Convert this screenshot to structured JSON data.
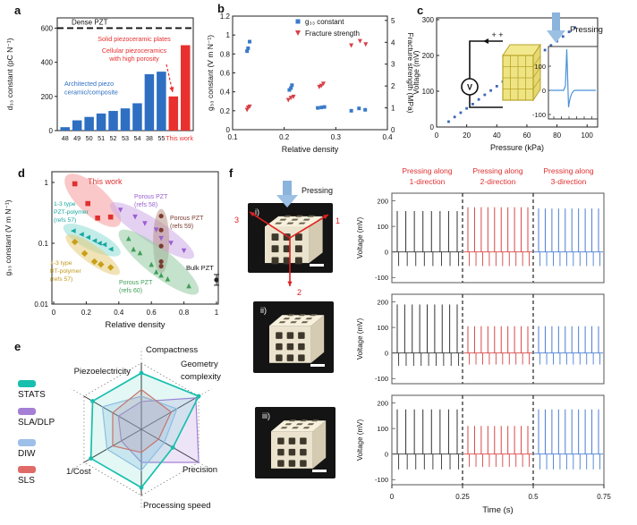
{
  "colors": {
    "bar_blue": "#2e6fc2",
    "accent_red": "#e8302e",
    "scatter_blue": "#3a7ac8",
    "triangle_red": "#d84048",
    "pulse_black": "#333333",
    "pulse_red": "#d84545",
    "pulse_blue": "#4a7ed2"
  },
  "chart_data": [
    {
      "panel": "a",
      "type": "bar",
      "ylabel": "d₃₃ constant  (pC N⁻¹)",
      "yticks": [
        0,
        200,
        400,
        600
      ],
      "ylim": [
        0,
        660
      ],
      "categories": [
        "48",
        "49",
        "50",
        "51",
        "52",
        "53",
        "54",
        "38",
        "55"
      ],
      "values": [
        20,
        60,
        80,
        100,
        115,
        130,
        160,
        330,
        345
      ],
      "bar_color": "#2e6fc2",
      "highlight_label": "This work",
      "highlight_values": [
        200,
        500
      ],
      "highlight_color": "#e8302e",
      "reference_line": {
        "value": 600,
        "label": "Dense PZT"
      },
      "annotations": {
        "solid": "Solid piezoceramic plates",
        "cellular": "Cellular piezoceramics\nwith high porosity",
        "architected": "Architected piezo\nceramic/composite"
      }
    },
    {
      "panel": "b",
      "type": "scatter-dual-axis",
      "xlabel": "Relative density",
      "xlim": [
        0.1,
        0.4
      ],
      "xticks": [
        0.1,
        0.2,
        0.3,
        0.4
      ],
      "ylabel_left": "g₃₃ constant  (V m N⁻¹)",
      "yticks_left": [
        0,
        0.2,
        0.4,
        0.6,
        0.8,
        1,
        1.2
      ],
      "ylabel_right": "Fracture strength (MPa)",
      "yticks_right": [
        0,
        1,
        2,
        3,
        4,
        5
      ],
      "series": [
        {
          "name": "g₃₃ constant",
          "marker": "square",
          "color": "#3a7ac8",
          "axis": "left",
          "points": [
            [
              0.128,
              0.83
            ],
            [
              0.13,
              0.86
            ],
            [
              0.133,
              0.93
            ],
            [
              0.21,
              0.42
            ],
            [
              0.213,
              0.44
            ],
            [
              0.215,
              0.47
            ],
            [
              0.265,
              0.23
            ],
            [
              0.272,
              0.235
            ],
            [
              0.278,
              0.24
            ],
            [
              0.33,
              0.2
            ],
            [
              0.345,
              0.225
            ],
            [
              0.357,
              0.21
            ]
          ]
        },
        {
          "name": "Fracture strength",
          "marker": "triangle-down",
          "color": "#d84048",
          "axis": "right",
          "points": [
            [
              0.128,
              0.9
            ],
            [
              0.13,
              1.0
            ],
            [
              0.133,
              1.05
            ],
            [
              0.208,
              1.35
            ],
            [
              0.213,
              1.45
            ],
            [
              0.218,
              1.5
            ],
            [
              0.268,
              1.95
            ],
            [
              0.272,
              2.0
            ],
            [
              0.276,
              2.1
            ],
            [
              0.33,
              3.85
            ],
            [
              0.347,
              4.05
            ],
            [
              0.358,
              3.9
            ]
          ]
        }
      ]
    },
    {
      "panel": "c",
      "type": "scatter",
      "xlabel": "Pressure (kPa)",
      "xlim": [
        0,
        107
      ],
      "xticks": [
        0,
        20,
        40,
        60,
        80,
        100
      ],
      "ylabel": "Voltage (mV)",
      "ylim": [
        0,
        300
      ],
      "yticks": [
        0,
        100,
        200,
        300
      ],
      "marker_color": "#3a66b5",
      "points": [
        [
          8,
          15
        ],
        [
          12,
          28
        ],
        [
          16,
          40
        ],
        [
          20,
          52
        ],
        [
          24,
          64
        ],
        [
          28,
          77
        ],
        [
          32,
          90
        ],
        [
          36,
          102
        ],
        [
          40,
          114
        ],
        [
          44,
          127
        ],
        [
          48,
          140
        ],
        [
          52,
          152
        ],
        [
          56,
          165
        ],
        [
          60,
          177
        ],
        [
          64,
          190
        ],
        [
          68,
          203
        ],
        [
          72,
          215
        ],
        [
          76,
          228
        ],
        [
          80,
          240
        ],
        [
          84,
          253
        ],
        [
          88,
          266
        ],
        [
          92,
          278
        ]
      ],
      "inset_circuit": {
        "pressing": "Pressing",
        "voltmeter": "V",
        "plus": "+  +"
      },
      "inset_pulse": {
        "yticks": [
          100,
          0,
          -100
        ],
        "peak": 170,
        "dip": -70
      }
    },
    {
      "panel": "d",
      "type": "scatter-log",
      "xlabel": "Relative density",
      "xlim": [
        0,
        1.05
      ],
      "xticks": [
        0,
        0.2,
        0.4,
        0.6,
        0.8,
        1
      ],
      "ylabel": "g₃₃ constant  (V m N⁻¹)",
      "yticks": [
        "1",
        "0.1",
        "0.01"
      ],
      "ylim": [
        0.01,
        1.5
      ],
      "groups": [
        {
          "label": "This work",
          "marker": "square",
          "color": "#e03030",
          "ellipse_color": "#f59a9a",
          "label_color": "#e03030",
          "points": [
            [
              0.13,
              0.95
            ],
            [
              0.21,
              0.45
            ],
            [
              0.27,
              0.26
            ],
            [
              0.35,
              0.27
            ]
          ]
        },
        {
          "label": "1-3 type\nPZT-polymer\n(refs 57)",
          "marker": "triangle-left",
          "color": "#18a8a0",
          "ellipse_color": "#8fdcd6",
          "label_color": "#18a8a0",
          "points": [
            [
              0.12,
              0.16
            ],
            [
              0.17,
              0.14
            ],
            [
              0.21,
              0.125
            ],
            [
              0.25,
              0.11
            ],
            [
              0.28,
              0.1
            ],
            [
              0.31,
              0.095
            ],
            [
              0.35,
              0.08
            ]
          ]
        },
        {
          "label": "1-3 type\nBT-polymer\n(refs 57)",
          "marker": "diamond",
          "color": "#c8a018",
          "ellipse_color": "#e6cc7a",
          "label_color": "#c09818",
          "points": [
            [
              0.13,
              0.105
            ],
            [
              0.19,
              0.068
            ],
            [
              0.25,
              0.05
            ],
            [
              0.29,
              0.045
            ],
            [
              0.35,
              0.04
            ]
          ]
        },
        {
          "label": "Porous PZT\n(refs 58)",
          "marker": "triangle-down",
          "color": "#9a5fd0",
          "ellipse_color": "#cdace8",
          "label_color": "#9a5fd0",
          "points": [
            [
              0.41,
              0.35
            ],
            [
              0.5,
              0.27
            ],
            [
              0.56,
              0.21
            ],
            [
              0.63,
              0.165
            ],
            [
              0.66,
              0.12
            ],
            [
              0.72,
              0.1
            ],
            [
              0.8,
              0.075
            ]
          ]
        },
        {
          "label": "Porous PZT\n(refs 59)",
          "marker": "circle",
          "color": "#7a3b30",
          "ellipse_color": "#b89488",
          "label_color": "#7a3b30",
          "points": [
            [
              0.66,
              0.28
            ],
            [
              0.66,
              0.165
            ],
            [
              0.66,
              0.09
            ],
            [
              0.66,
              0.05
            ],
            [
              0.66,
              0.042
            ]
          ]
        },
        {
          "label": "Porous PZT\n(refs 60)",
          "marker": "triangle-up",
          "color": "#3f9e58",
          "ellipse_color": "#93cba2",
          "label_color": "#3f9e58",
          "points": [
            [
              0.46,
              0.12
            ],
            [
              0.49,
              0.08
            ],
            [
              0.53,
              0.07
            ],
            [
              0.6,
              0.045
            ],
            [
              0.63,
              0.034
            ],
            [
              0.66,
              0.03
            ],
            [
              0.7,
              0.026
            ],
            [
              0.83,
              0.02
            ]
          ]
        },
        {
          "label": "Bulk PZT",
          "marker": "circle",
          "color": "#222222",
          "label_color": "#111111",
          "points": [
            [
              1.0,
              0.025
            ]
          ]
        }
      ]
    },
    {
      "panel": "e",
      "type": "radar",
      "axes": [
        "Compactness",
        "Geometry\ncomplexity",
        "Precision",
        "Processing speed",
        "1/Cost",
        "Piezoelectricity"
      ],
      "rmax": 1.0,
      "series": [
        {
          "name": "STATS",
          "color": "#17bfae",
          "values": [
            0.85,
            1.0,
            0.55,
            0.88,
            0.88,
            0.85
          ]
        },
        {
          "name": "SLA/DLP",
          "color": "#a57fd6",
          "values": [
            0.42,
            0.95,
            1.0,
            0.5,
            0.35,
            0.4
          ]
        },
        {
          "name": "DIW",
          "color": "#9dbfe8",
          "values": [
            0.5,
            0.62,
            0.4,
            0.62,
            0.6,
            0.68
          ]
        },
        {
          "name": "SLS",
          "color": "#e06a66",
          "values": [
            0.6,
            0.52,
            0.3,
            0.35,
            0.5,
            0.5
          ]
        }
      ]
    },
    {
      "panel": "f",
      "type": "pulse-trains",
      "headers": [
        "Pressing along\n1-direction",
        "Pressing along\n2-direction",
        "Pressing along\n3-direction"
      ],
      "header_color": "#e03030",
      "xlabel": "Time (s)",
      "xticks": [
        "0",
        "0.25",
        "0.5",
        "0.75"
      ],
      "xlim": [
        0,
        0.75
      ],
      "ylabel": "Voltage (mV)",
      "yticks": [
        200,
        100,
        0,
        -100
      ],
      "ylim": [
        -120,
        230
      ],
      "segment_colors": [
        "#333333",
        "#d84545",
        "#4a7ed2"
      ],
      "photo_labels": [
        "i)",
        "ii)",
        "iii)"
      ],
      "photo_annotations": {
        "pressing": "Pressing",
        "axis1": "1",
        "axis2": "2",
        "axis3": "3"
      },
      "rows": [
        {
          "photo": "i)",
          "amplitudes": [
            160,
            175,
            170
          ],
          "negatives": [
            -55,
            -55,
            -55
          ],
          "spikes": [
            8,
            10,
            10
          ]
        },
        {
          "photo": "ii)",
          "amplitudes": [
            190,
            105,
            105
          ],
          "negatives": [
            -50,
            -45,
            -45
          ],
          "spikes": [
            9,
            10,
            10
          ]
        },
        {
          "photo": "iii)",
          "amplitudes": [
            175,
            110,
            175
          ],
          "negatives": [
            -60,
            -50,
            -60
          ],
          "spikes": [
            8,
            10,
            10
          ]
        }
      ]
    }
  ]
}
